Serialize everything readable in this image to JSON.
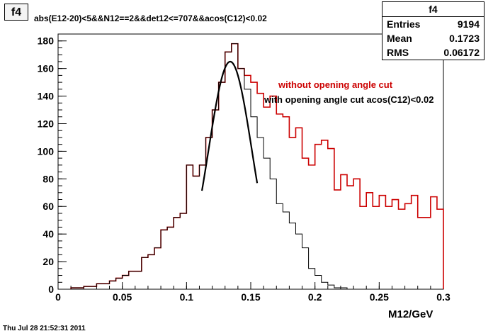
{
  "tab_label": "f4",
  "cut_text": "abs(E12-20)<5&&N12==2&&det12<=707&&acos(C12)<0.02",
  "stats": {
    "title": "f4",
    "rows": [
      {
        "label": "Entries",
        "value": "9194"
      },
      {
        "label": "Mean",
        "value": "0.1723"
      },
      {
        "label": "RMS",
        "value": "0.06172"
      }
    ]
  },
  "footer_timestamp": "Thu Jul 28 21:52:31 2011",
  "colors": {
    "red_series": "#cc0000",
    "black_series": "#000000",
    "fit_curve": "#000000"
  },
  "chart_data": {
    "type": "line",
    "title": "",
    "xlabel": "M12/GeV",
    "ylabel": "",
    "xlim": [
      0,
      0.3
    ],
    "ylim": [
      0,
      185
    ],
    "x_ticks": [
      0,
      0.05,
      0.1,
      0.15,
      0.2,
      0.25,
      0.3
    ],
    "x_tick_labels": [
      "0",
      "0.05",
      "0.1",
      "0.15",
      "0.2",
      "0.25",
      "0.3"
    ],
    "y_ticks": [
      0,
      20,
      40,
      60,
      80,
      100,
      120,
      140,
      160,
      180
    ],
    "y_tick_labels": [
      "0",
      "20",
      "40",
      "60",
      "80",
      "100",
      "120",
      "140",
      "160",
      "180"
    ],
    "bin_edges": [
      0.01,
      0.015,
      0.02,
      0.025,
      0.03,
      0.035,
      0.04,
      0.045,
      0.05,
      0.055,
      0.06,
      0.065,
      0.07,
      0.075,
      0.08,
      0.085,
      0.09,
      0.095,
      0.1,
      0.105,
      0.11,
      0.115,
      0.12,
      0.125,
      0.13,
      0.135,
      0.14,
      0.145,
      0.15,
      0.155,
      0.16,
      0.165,
      0.17,
      0.175,
      0.18,
      0.185,
      0.19,
      0.195,
      0.2,
      0.205,
      0.21,
      0.215,
      0.22,
      0.225,
      0.23,
      0.235,
      0.24,
      0.245,
      0.25,
      0.255,
      0.26,
      0.265,
      0.27,
      0.275,
      0.28,
      0.285,
      0.29,
      0.295,
      0.3
    ],
    "series": [
      {
        "name": "without opening angle cut",
        "color": "#cc0000",
        "values": [
          1,
          1,
          2,
          2,
          4,
          4,
          6,
          8,
          10,
          13,
          13,
          23,
          25,
          30,
          43,
          45,
          52,
          55,
          90,
          82,
          90,
          110,
          130,
          150,
          172,
          178,
          160,
          155,
          150,
          142,
          132,
          140,
          127,
          125,
          110,
          117,
          95,
          90,
          105,
          108,
          102,
          72,
          83,
          75,
          80,
          60,
          70,
          60,
          68,
          60,
          65,
          58,
          62,
          68,
          52,
          52,
          67,
          58
        ]
      },
      {
        "name": "with opening angle cut acos(C12)<0.02",
        "color": "#000000",
        "values": [
          1,
          1,
          2,
          2,
          4,
          4,
          6,
          8,
          10,
          13,
          13,
          23,
          25,
          30,
          43,
          45,
          52,
          55,
          90,
          82,
          90,
          110,
          130,
          150,
          172,
          178,
          160,
          145,
          125,
          110,
          95,
          80,
          62,
          56,
          48,
          40,
          30,
          15,
          10,
          5,
          3,
          1,
          1,
          0,
          0,
          0,
          0,
          0,
          0,
          0,
          0,
          0,
          0,
          0,
          0,
          0,
          0,
          0
        ]
      }
    ],
    "fit": {
      "type": "gaussian",
      "amplitude": 165,
      "mean": 0.134,
      "sigma": 0.017,
      "x_range": [
        0.112,
        0.155
      ]
    },
    "annotations": [
      {
        "text": "without opening angle cut",
        "color": "#cc0000"
      },
      {
        "text": "with opening angle cut acos(C12)<0.02",
        "color": "#000000"
      }
    ],
    "grid": false,
    "legend": "none"
  }
}
